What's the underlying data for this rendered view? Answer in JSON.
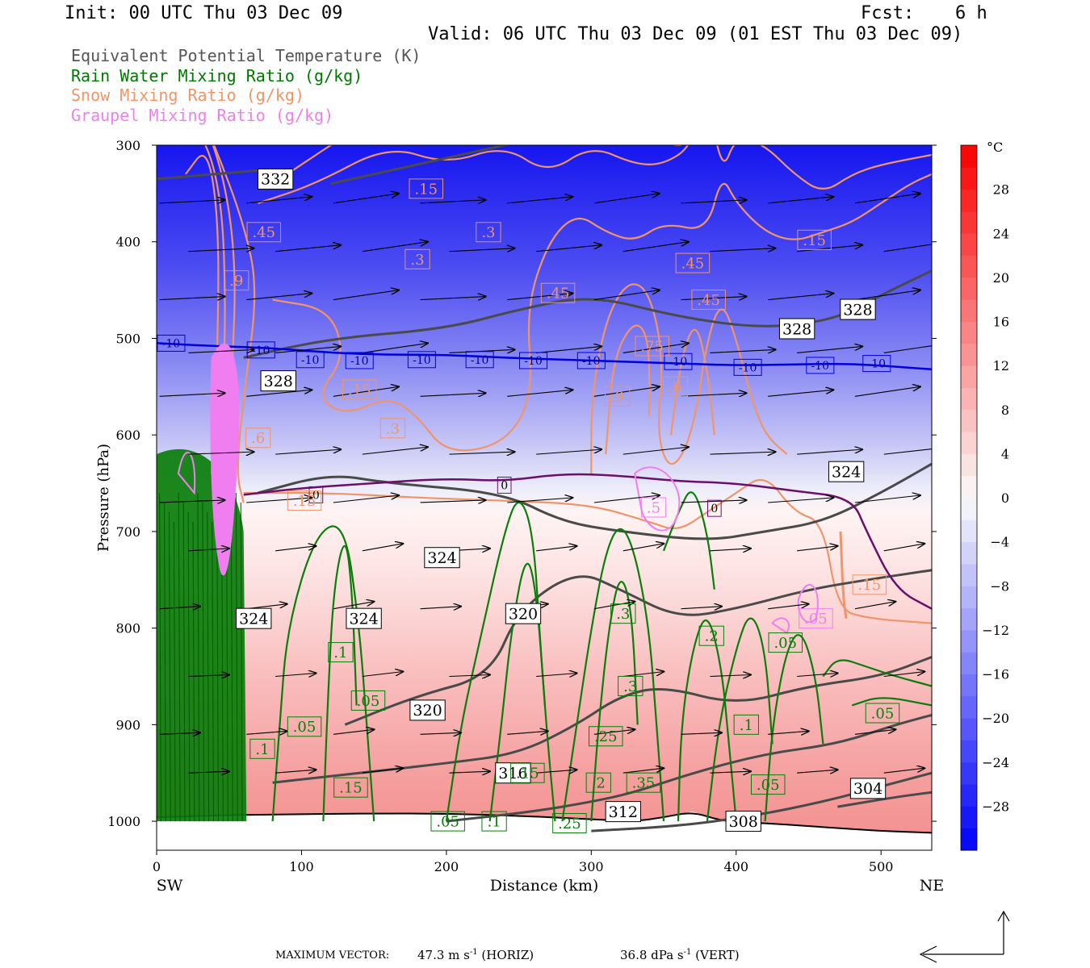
{
  "header": {
    "init": "Init: 00 UTC Thu 03 Dec 09",
    "fcst_label": "Fcst:",
    "fcst_value": "6 h",
    "valid": "Valid: 06 UTC Thu 03 Dec 09 (01 EST Thu 03 Dec 09)"
  },
  "legend": [
    {
      "label": "Equivalent Potential Temperature (K)",
      "color": "#555555"
    },
    {
      "label": "Rain Water Mixing Ratio (g/kg)",
      "color": "#007700"
    },
    {
      "label": "Snow Mixing Ratio (g/kg)",
      "color": "#f0946a"
    },
    {
      "label": "Graupel Mixing Ratio (g/kg)",
      "color": "#f07ef0"
    }
  ],
  "chart_data": {
    "type": "cross-section",
    "xlabel": "Distance (km)",
    "ylabel": "Pressure (hPa)",
    "xlim": [
      0,
      535
    ],
    "ylim": [
      1030,
      300
    ],
    "x_ticks": [
      0,
      100,
      200,
      300,
      400,
      500
    ],
    "y_ticks": [
      300,
      400,
      500,
      600,
      700,
      800,
      900,
      1000
    ],
    "x_end_labels": {
      "left": "SW",
      "right": "NE"
    },
    "colorbar": {
      "unit": "°C",
      "tick_values": [
        28,
        24,
        20,
        16,
        12,
        8,
        4,
        0,
        -4,
        -8,
        -12,
        -16,
        -20,
        -24,
        -28
      ],
      "range": [
        -32,
        32
      ]
    },
    "temperature_isotherms": [
      {
        "name": "-10",
        "color": "#0000dd",
        "points": [
          [
            0,
            505
          ],
          [
            40,
            508
          ],
          [
            80,
            510
          ],
          [
            120,
            515
          ],
          [
            160,
            517
          ],
          [
            200,
            517
          ],
          [
            240,
            520
          ],
          [
            280,
            522
          ],
          [
            320,
            524
          ],
          [
            360,
            526
          ],
          [
            400,
            528
          ],
          [
            440,
            527
          ],
          [
            480,
            526
          ],
          [
            535,
            532
          ]
        ],
        "labels": [
          [
            10,
            505
          ],
          [
            72,
            512
          ],
          [
            106,
            522
          ],
          [
            140,
            523
          ],
          [
            183,
            522
          ],
          [
            223,
            522
          ],
          [
            260,
            523
          ],
          [
            300,
            523
          ],
          [
            360,
            524
          ],
          [
            408,
            530
          ],
          [
            458,
            528
          ],
          [
            497,
            526
          ]
        ]
      },
      {
        "name": "0",
        "color": "#6b0f6b",
        "points": [
          [
            60,
            662
          ],
          [
            100,
            655
          ],
          [
            150,
            650
          ],
          [
            200,
            645
          ],
          [
            240,
            648
          ],
          [
            280,
            640
          ],
          [
            320,
            642
          ],
          [
            360,
            648
          ],
          [
            400,
            650
          ],
          [
            440,
            658
          ],
          [
            480,
            665
          ],
          [
            490,
            700
          ],
          [
            510,
            760
          ],
          [
            535,
            780
          ]
        ],
        "labels": [
          [
            110,
            662
          ],
          [
            240,
            652
          ],
          [
            385,
            676
          ]
        ]
      }
    ],
    "theta_e_contours": [
      {
        "value": 332,
        "points": [
          [
            0,
            335
          ],
          [
            40,
            330
          ],
          [
            80,
            325
          ]
        ],
        "labels": [
          [
            82,
            335
          ]
        ]
      },
      {
        "value": 328,
        "points": [
          [
            60,
            520
          ],
          [
            120,
            500
          ],
          [
            200,
            490
          ],
          [
            250,
            470
          ],
          [
            300,
            455
          ],
          [
            360,
            478
          ],
          [
            420,
            490
          ],
          [
            470,
            480
          ],
          [
            500,
            455
          ],
          [
            535,
            430
          ]
        ],
        "labels": [
          [
            84,
            544
          ],
          [
            442,
            490
          ],
          [
            484,
            470
          ]
        ]
      },
      {
        "value": 324,
        "points": [
          [
            70,
            660
          ],
          [
            120,
            640
          ],
          [
            160,
            650
          ],
          [
            240,
            660
          ],
          [
            280,
            690
          ],
          [
            320,
            700
          ],
          [
            380,
            710
          ],
          [
            420,
            700
          ],
          [
            460,
            690
          ],
          [
            500,
            660
          ],
          [
            535,
            630
          ]
        ],
        "labels": [
          [
            197,
            727
          ],
          [
            476,
            638
          ],
          [
            67,
            790
          ],
          [
            143,
            790
          ]
        ]
      },
      {
        "value": 320,
        "points": [
          [
            130,
            900
          ],
          [
            180,
            870
          ],
          [
            230,
            850
          ],
          [
            250,
            780
          ],
          [
            290,
            740
          ],
          [
            320,
            760
          ],
          [
            360,
            790
          ],
          [
            400,
            780
          ],
          [
            450,
            760
          ],
          [
            490,
            750
          ],
          [
            535,
            740
          ]
        ],
        "labels": [
          [
            187,
            885
          ],
          [
            253,
            785
          ]
        ]
      },
      {
        "value": 316,
        "points": [
          [
            80,
            960
          ],
          [
            140,
            950
          ],
          [
            200,
            940
          ],
          [
            250,
            930
          ],
          [
            290,
            900
          ],
          [
            320,
            870
          ],
          [
            350,
            860
          ],
          [
            400,
            880
          ],
          [
            450,
            860
          ],
          [
            500,
            850
          ],
          [
            535,
            830
          ]
        ],
        "labels": [
          [
            246,
            950
          ]
        ]
      },
      {
        "value": 312,
        "points": [
          [
            200,
            1000
          ],
          [
            260,
            990
          ],
          [
            300,
            980
          ],
          [
            330,
            970
          ],
          [
            370,
            950
          ],
          [
            420,
            930
          ],
          [
            470,
            920
          ],
          [
            510,
            900
          ],
          [
            535,
            890
          ]
        ],
        "labels": [
          [
            322,
            990
          ]
        ]
      },
      {
        "value": 308,
        "points": [
          [
            300,
            1010
          ],
          [
            360,
            1005
          ],
          [
            410,
            995
          ],
          [
            460,
            980
          ],
          [
            510,
            960
          ],
          [
            535,
            950
          ]
        ],
        "labels": [
          [
            405,
            1000
          ]
        ]
      },
      {
        "value": 304,
        "points": [
          [
            470,
            985
          ],
          [
            510,
            975
          ],
          [
            535,
            970
          ]
        ],
        "labels": [
          [
            491,
            966
          ]
        ]
      }
    ],
    "snow_labels": [
      {
        "value": ".15",
        "x": 186,
        "p": 345
      },
      {
        "value": ".3",
        "x": 229,
        "p": 390
      },
      {
        "value": ".45",
        "x": 74,
        "p": 390
      },
      {
        "value": ".3",
        "x": 180,
        "p": 418
      },
      {
        "value": ".45",
        "x": 277,
        "p": 453
      },
      {
        "value": ".45",
        "x": 370,
        "p": 422
      },
      {
        "value": ".45",
        "x": 381,
        "p": 460
      },
      {
        "value": ".15",
        "x": 454,
        "p": 398
      },
      {
        "value": ".75",
        "x": 342,
        "p": 508
      },
      {
        "value": ".9",
        "x": 318,
        "p": 560
      },
      {
        "value": ".6",
        "x": 358,
        "p": 550
      },
      {
        "value": ".15",
        "x": 140,
        "p": 553
      },
      {
        "value": ".3",
        "x": 163,
        "p": 593
      },
      {
        "value": ".6",
        "x": 70,
        "p": 603
      },
      {
        "value": ".9",
        "x": 55,
        "p": 440
      },
      {
        "value": ".15",
        "x": 102,
        "p": 668
      },
      {
        "value": ".15",
        "x": 492,
        "p": 755
      }
    ],
    "rain_labels": [
      {
        "value": ".1",
        "x": 127,
        "p": 825
      },
      {
        "value": ".05",
        "x": 146,
        "p": 875
      },
      {
        "value": ".05",
        "x": 102,
        "p": 902
      },
      {
        "value": ".1",
        "x": 73,
        "p": 925
      },
      {
        "value": ".15",
        "x": 134,
        "p": 965
      },
      {
        "value": ".05",
        "x": 201,
        "p": 1000
      },
      {
        "value": ".1",
        "x": 233,
        "p": 1000
      },
      {
        "value": ".25",
        "x": 285,
        "p": 1002
      },
      {
        "value": ".2",
        "x": 305,
        "p": 960
      },
      {
        "value": ".35",
        "x": 336,
        "p": 960
      },
      {
        "value": ".25",
        "x": 310,
        "p": 912
      },
      {
        "value": ".3",
        "x": 327,
        "p": 860
      },
      {
        "value": ".3",
        "x": 322,
        "p": 785
      },
      {
        "value": ".2",
        "x": 383,
        "p": 808
      },
      {
        "value": ".05",
        "x": 434,
        "p": 815
      },
      {
        "value": ".1",
        "x": 407,
        "p": 900
      },
      {
        "value": ".05",
        "x": 422,
        "p": 962
      },
      {
        "value": ".05",
        "x": 501,
        "p": 888
      },
      {
        "value": ".15",
        "x": 256,
        "p": 950
      }
    ],
    "graupel_labels": [
      {
        "value": ".05",
        "x": 455,
        "p": 790
      },
      {
        "value": ".5",
        "x": 343,
        "p": 675
      }
    ]
  },
  "footer": {
    "max_vector_label": "MAXIMUM VECTOR:",
    "horiz_value": "47.3 m s",
    "horiz_exp": "-1",
    "horiz_unit": "(HORIZ)",
    "vert_value": "36.8 dPa s",
    "vert_exp": "-1",
    "vert_unit": "(VERT)"
  }
}
